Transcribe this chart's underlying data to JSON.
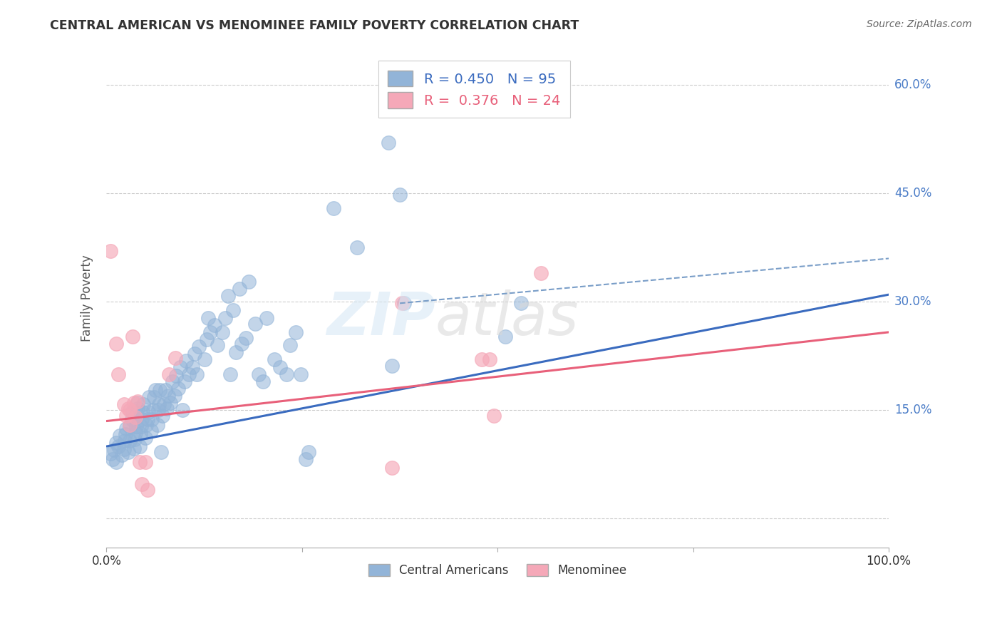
{
  "title": "CENTRAL AMERICAN VS MENOMINEE FAMILY POVERTY CORRELATION CHART",
  "source": "Source: ZipAtlas.com",
  "ylabel": "Family Poverty",
  "y_ticks": [
    0.0,
    0.15,
    0.3,
    0.45,
    0.6
  ],
  "y_tick_labels": [
    "",
    "15.0%",
    "30.0%",
    "45.0%",
    "60.0%"
  ],
  "xlim": [
    0.0,
    1.0
  ],
  "ylim": [
    -0.04,
    0.65
  ],
  "blue_color": "#92b4d8",
  "pink_color": "#f5a8b8",
  "blue_line_color": "#3a6bbf",
  "pink_line_color": "#e8607a",
  "dashed_color": "#7a9ec8",
  "ytick_color": "#4a7cc7",
  "blue_scatter": [
    [
      0.005,
      0.09
    ],
    [
      0.008,
      0.082
    ],
    [
      0.01,
      0.095
    ],
    [
      0.012,
      0.105
    ],
    [
      0.012,
      0.078
    ],
    [
      0.015,
      0.1
    ],
    [
      0.017,
      0.115
    ],
    [
      0.02,
      0.088
    ],
    [
      0.022,
      0.096
    ],
    [
      0.023,
      0.108
    ],
    [
      0.024,
      0.117
    ],
    [
      0.025,
      0.125
    ],
    [
      0.028,
      0.092
    ],
    [
      0.03,
      0.108
    ],
    [
      0.03,
      0.128
    ],
    [
      0.032,
      0.138
    ],
    [
      0.033,
      0.148
    ],
    [
      0.035,
      0.097
    ],
    [
      0.036,
      0.11
    ],
    [
      0.037,
      0.119
    ],
    [
      0.038,
      0.128
    ],
    [
      0.038,
      0.14
    ],
    [
      0.04,
      0.152
    ],
    [
      0.04,
      0.16
    ],
    [
      0.042,
      0.1
    ],
    [
      0.043,
      0.118
    ],
    [
      0.044,
      0.128
    ],
    [
      0.045,
      0.138
    ],
    [
      0.046,
      0.147
    ],
    [
      0.047,
      0.158
    ],
    [
      0.05,
      0.112
    ],
    [
      0.051,
      0.13
    ],
    [
      0.052,
      0.138
    ],
    [
      0.053,
      0.147
    ],
    [
      0.054,
      0.168
    ],
    [
      0.057,
      0.122
    ],
    [
      0.058,
      0.138
    ],
    [
      0.06,
      0.15
    ],
    [
      0.061,
      0.168
    ],
    [
      0.062,
      0.178
    ],
    [
      0.065,
      0.13
    ],
    [
      0.066,
      0.15
    ],
    [
      0.067,
      0.158
    ],
    [
      0.068,
      0.178
    ],
    [
      0.07,
      0.092
    ],
    [
      0.072,
      0.142
    ],
    [
      0.073,
      0.158
    ],
    [
      0.075,
      0.178
    ],
    [
      0.077,
      0.152
    ],
    [
      0.079,
      0.17
    ],
    [
      0.082,
      0.16
    ],
    [
      0.084,
      0.19
    ],
    [
      0.087,
      0.17
    ],
    [
      0.089,
      0.198
    ],
    [
      0.092,
      0.18
    ],
    [
      0.094,
      0.21
    ],
    [
      0.097,
      0.15
    ],
    [
      0.1,
      0.19
    ],
    [
      0.102,
      0.218
    ],
    [
      0.105,
      0.2
    ],
    [
      0.11,
      0.21
    ],
    [
      0.113,
      0.228
    ],
    [
      0.115,
      0.2
    ],
    [
      0.118,
      0.238
    ],
    [
      0.125,
      0.22
    ],
    [
      0.128,
      0.248
    ],
    [
      0.13,
      0.278
    ],
    [
      0.133,
      0.258
    ],
    [
      0.138,
      0.268
    ],
    [
      0.142,
      0.24
    ],
    [
      0.148,
      0.258
    ],
    [
      0.152,
      0.278
    ],
    [
      0.155,
      0.308
    ],
    [
      0.158,
      0.2
    ],
    [
      0.162,
      0.288
    ],
    [
      0.165,
      0.23
    ],
    [
      0.17,
      0.318
    ],
    [
      0.173,
      0.242
    ],
    [
      0.178,
      0.25
    ],
    [
      0.182,
      0.328
    ],
    [
      0.19,
      0.27
    ],
    [
      0.195,
      0.2
    ],
    [
      0.2,
      0.19
    ],
    [
      0.205,
      0.278
    ],
    [
      0.215,
      0.22
    ],
    [
      0.222,
      0.21
    ],
    [
      0.23,
      0.2
    ],
    [
      0.235,
      0.24
    ],
    [
      0.242,
      0.258
    ],
    [
      0.248,
      0.2
    ],
    [
      0.255,
      0.082
    ],
    [
      0.258,
      0.092
    ],
    [
      0.29,
      0.43
    ],
    [
      0.32,
      0.375
    ],
    [
      0.36,
      0.52
    ],
    [
      0.365,
      0.212
    ],
    [
      0.375,
      0.448
    ],
    [
      0.38,
      0.298
    ],
    [
      0.51,
      0.252
    ],
    [
      0.53,
      0.298
    ]
  ],
  "pink_scatter": [
    [
      0.005,
      0.37
    ],
    [
      0.012,
      0.242
    ],
    [
      0.015,
      0.2
    ],
    [
      0.022,
      0.158
    ],
    [
      0.025,
      0.142
    ],
    [
      0.028,
      0.152
    ],
    [
      0.03,
      0.13
    ],
    [
      0.03,
      0.15
    ],
    [
      0.033,
      0.252
    ],
    [
      0.035,
      0.16
    ],
    [
      0.037,
      0.14
    ],
    [
      0.04,
      0.162
    ],
    [
      0.042,
      0.078
    ],
    [
      0.045,
      0.048
    ],
    [
      0.05,
      0.078
    ],
    [
      0.052,
      0.04
    ],
    [
      0.08,
      0.2
    ],
    [
      0.088,
      0.222
    ],
    [
      0.365,
      0.07
    ],
    [
      0.378,
      0.298
    ],
    [
      0.48,
      0.22
    ],
    [
      0.49,
      0.22
    ],
    [
      0.495,
      0.142
    ],
    [
      0.555,
      0.34
    ]
  ],
  "blue_line_x": [
    0.0,
    1.0
  ],
  "blue_line_y": [
    0.1,
    0.31
  ],
  "pink_line_x": [
    0.0,
    1.0
  ],
  "pink_line_y": [
    0.135,
    0.258
  ],
  "dashed_line_x": [
    0.375,
    1.0
  ],
  "dashed_line_y": [
    0.298,
    0.36
  ]
}
